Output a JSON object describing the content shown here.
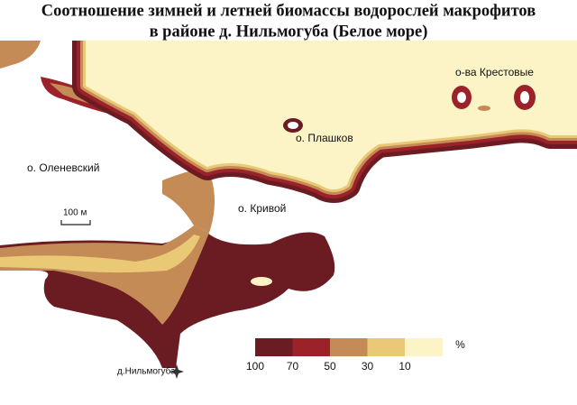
{
  "title": [
    "Соотношение зимней и летней биомассы водорослей макрофитов",
    "в районе д. Нильмогуба (Белое море)"
  ],
  "places": [
    "о-ва Крестовые",
    "о. Плашков",
    "о. Оленевский",
    "о. Кривой",
    "д.Нильмогуба"
  ],
  "scale_bar": "100 м",
  "legend": {
    "unit": "%",
    "ticks": [
      100,
      70,
      50,
      30,
      10
    ],
    "colors": [
      "#6b1c22",
      "#9c2229",
      "#c58b57",
      "#e9c976",
      "#fcf4c6"
    ]
  }
}
